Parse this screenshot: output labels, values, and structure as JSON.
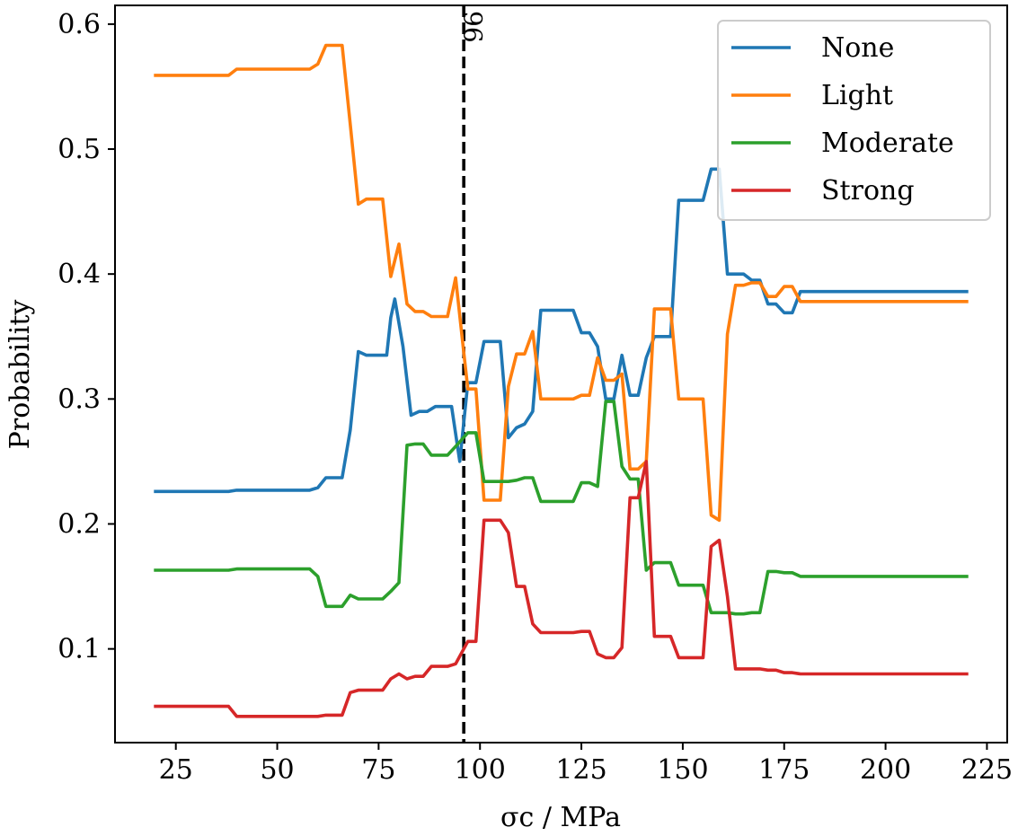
{
  "chart_data": {
    "type": "line",
    "title": "",
    "xlabel": "σc / MPa",
    "ylabel": "Probability",
    "xlim": [
      10,
      230
    ],
    "ylim": [
      0.025,
      0.615
    ],
    "xticks": [
      25,
      50,
      75,
      100,
      125,
      150,
      175,
      200,
      225
    ],
    "yticks": [
      0.1,
      0.2,
      0.3,
      0.4,
      0.5,
      0.6
    ],
    "ytick_labels": [
      "0.1",
      "0.2",
      "0.3",
      "0.4",
      "0.5",
      "0.6"
    ],
    "legend_position": "top-right",
    "vline": {
      "x": 96,
      "label": "96",
      "style": "dashed"
    },
    "series": [
      {
        "name": "None",
        "color": "#1f77b4",
        "points": [
          [
            20,
            0.226
          ],
          [
            38,
            0.226
          ],
          [
            40,
            0.227
          ],
          [
            58,
            0.227
          ],
          [
            60,
            0.229
          ],
          [
            62,
            0.237
          ],
          [
            66,
            0.237
          ],
          [
            68,
            0.275
          ],
          [
            70,
            0.338
          ],
          [
            72,
            0.335
          ],
          [
            75,
            0.335
          ],
          [
            77,
            0.335
          ],
          [
            78,
            0.365
          ],
          [
            79,
            0.38
          ],
          [
            81,
            0.342
          ],
          [
            83,
            0.287
          ],
          [
            85,
            0.29
          ],
          [
            87,
            0.29
          ],
          [
            89,
            0.294
          ],
          [
            93,
            0.294
          ],
          [
            95,
            0.25
          ],
          [
            97,
            0.313
          ],
          [
            99,
            0.313
          ],
          [
            101,
            0.346
          ],
          [
            105,
            0.346
          ],
          [
            107,
            0.269
          ],
          [
            109,
            0.277
          ],
          [
            111,
            0.28
          ],
          [
            113,
            0.29
          ],
          [
            115,
            0.371
          ],
          [
            123,
            0.371
          ],
          [
            125,
            0.353
          ],
          [
            127,
            0.353
          ],
          [
            129,
            0.342
          ],
          [
            131,
            0.3
          ],
          [
            133,
            0.3
          ],
          [
            135,
            0.335
          ],
          [
            137,
            0.303
          ],
          [
            139,
            0.303
          ],
          [
            141,
            0.333
          ],
          [
            143,
            0.35
          ],
          [
            147,
            0.35
          ],
          [
            149,
            0.459
          ],
          [
            155,
            0.459
          ],
          [
            157,
            0.484
          ],
          [
            159,
            0.484
          ],
          [
            161,
            0.4
          ],
          [
            165,
            0.4
          ],
          [
            167,
            0.395
          ],
          [
            169,
            0.395
          ],
          [
            171,
            0.376
          ],
          [
            173,
            0.376
          ],
          [
            175,
            0.369
          ],
          [
            177,
            0.369
          ],
          [
            179,
            0.386
          ],
          [
            220,
            0.386
          ]
        ]
      },
      {
        "name": "Light",
        "color": "#ff7f0e",
        "points": [
          [
            20,
            0.559
          ],
          [
            38,
            0.559
          ],
          [
            40,
            0.564
          ],
          [
            58,
            0.564
          ],
          [
            60,
            0.568
          ],
          [
            62,
            0.583
          ],
          [
            66,
            0.583
          ],
          [
            68,
            0.52
          ],
          [
            70,
            0.456
          ],
          [
            72,
            0.46
          ],
          [
            76,
            0.46
          ],
          [
            78,
            0.398
          ],
          [
            80,
            0.424
          ],
          [
            82,
            0.376
          ],
          [
            84,
            0.37
          ],
          [
            86,
            0.37
          ],
          [
            88,
            0.366
          ],
          [
            92,
            0.366
          ],
          [
            94,
            0.397
          ],
          [
            96,
            0.337
          ],
          [
            97,
            0.308
          ],
          [
            99,
            0.308
          ],
          [
            101,
            0.219
          ],
          [
            105,
            0.219
          ],
          [
            107,
            0.31
          ],
          [
            109,
            0.336
          ],
          [
            111,
            0.336
          ],
          [
            113,
            0.354
          ],
          [
            115,
            0.3
          ],
          [
            123,
            0.3
          ],
          [
            125,
            0.303
          ],
          [
            127,
            0.303
          ],
          [
            129,
            0.333
          ],
          [
            131,
            0.315
          ],
          [
            133,
            0.315
          ],
          [
            135,
            0.32
          ],
          [
            137,
            0.244
          ],
          [
            139,
            0.244
          ],
          [
            141,
            0.25
          ],
          [
            143,
            0.372
          ],
          [
            147,
            0.372
          ],
          [
            149,
            0.3
          ],
          [
            155,
            0.3
          ],
          [
            157,
            0.207
          ],
          [
            159,
            0.203
          ],
          [
            161,
            0.352
          ],
          [
            163,
            0.391
          ],
          [
            165,
            0.391
          ],
          [
            167,
            0.393
          ],
          [
            169,
            0.393
          ],
          [
            171,
            0.382
          ],
          [
            173,
            0.382
          ],
          [
            175,
            0.39
          ],
          [
            177,
            0.39
          ],
          [
            179,
            0.378
          ],
          [
            220,
            0.378
          ]
        ]
      },
      {
        "name": "Moderate",
        "color": "#2ca02c",
        "points": [
          [
            20,
            0.163
          ],
          [
            38,
            0.163
          ],
          [
            40,
            0.164
          ],
          [
            58,
            0.164
          ],
          [
            60,
            0.158
          ],
          [
            62,
            0.134
          ],
          [
            66,
            0.134
          ],
          [
            68,
            0.143
          ],
          [
            70,
            0.14
          ],
          [
            72,
            0.14
          ],
          [
            76,
            0.14
          ],
          [
            78,
            0.146
          ],
          [
            80,
            0.153
          ],
          [
            82,
            0.263
          ],
          [
            84,
            0.264
          ],
          [
            86,
            0.264
          ],
          [
            88,
            0.255
          ],
          [
            92,
            0.255
          ],
          [
            94,
            0.262
          ],
          [
            97,
            0.273
          ],
          [
            99,
            0.273
          ],
          [
            101,
            0.234
          ],
          [
            105,
            0.234
          ],
          [
            107,
            0.234
          ],
          [
            109,
            0.235
          ],
          [
            111,
            0.237
          ],
          [
            113,
            0.237
          ],
          [
            115,
            0.218
          ],
          [
            123,
            0.218
          ],
          [
            125,
            0.233
          ],
          [
            127,
            0.233
          ],
          [
            129,
            0.23
          ],
          [
            131,
            0.298
          ],
          [
            133,
            0.298
          ],
          [
            135,
            0.246
          ],
          [
            137,
            0.236
          ],
          [
            139,
            0.236
          ],
          [
            141,
            0.163
          ],
          [
            143,
            0.169
          ],
          [
            147,
            0.169
          ],
          [
            149,
            0.151
          ],
          [
            155,
            0.151
          ],
          [
            157,
            0.129
          ],
          [
            161,
            0.129
          ],
          [
            163,
            0.128
          ],
          [
            165,
            0.128
          ],
          [
            167,
            0.129
          ],
          [
            169,
            0.129
          ],
          [
            171,
            0.162
          ],
          [
            173,
            0.162
          ],
          [
            175,
            0.161
          ],
          [
            177,
            0.161
          ],
          [
            179,
            0.158
          ],
          [
            220,
            0.158
          ]
        ]
      },
      {
        "name": "Strong",
        "color": "#d62728",
        "points": [
          [
            20,
            0.054
          ],
          [
            38,
            0.054
          ],
          [
            40,
            0.046
          ],
          [
            58,
            0.046
          ],
          [
            60,
            0.046
          ],
          [
            62,
            0.047
          ],
          [
            66,
            0.047
          ],
          [
            68,
            0.065
          ],
          [
            70,
            0.067
          ],
          [
            72,
            0.067
          ],
          [
            76,
            0.067
          ],
          [
            78,
            0.076
          ],
          [
            80,
            0.08
          ],
          [
            82,
            0.076
          ],
          [
            84,
            0.078
          ],
          [
            86,
            0.078
          ],
          [
            88,
            0.086
          ],
          [
            92,
            0.086
          ],
          [
            94,
            0.088
          ],
          [
            97,
            0.106
          ],
          [
            99,
            0.106
          ],
          [
            101,
            0.203
          ],
          [
            105,
            0.203
          ],
          [
            107,
            0.193
          ],
          [
            109,
            0.15
          ],
          [
            111,
            0.15
          ],
          [
            113,
            0.12
          ],
          [
            115,
            0.113
          ],
          [
            123,
            0.113
          ],
          [
            125,
            0.114
          ],
          [
            127,
            0.114
          ],
          [
            129,
            0.096
          ],
          [
            131,
            0.093
          ],
          [
            133,
            0.093
          ],
          [
            135,
            0.101
          ],
          [
            137,
            0.221
          ],
          [
            139,
            0.221
          ],
          [
            141,
            0.25
          ],
          [
            143,
            0.11
          ],
          [
            147,
            0.11
          ],
          [
            149,
            0.093
          ],
          [
            155,
            0.093
          ],
          [
            157,
            0.182
          ],
          [
            159,
            0.187
          ],
          [
            161,
            0.142
          ],
          [
            163,
            0.084
          ],
          [
            165,
            0.084
          ],
          [
            167,
            0.084
          ],
          [
            169,
            0.084
          ],
          [
            171,
            0.083
          ],
          [
            173,
            0.083
          ],
          [
            175,
            0.081
          ],
          [
            177,
            0.081
          ],
          [
            179,
            0.08
          ],
          [
            220,
            0.08
          ]
        ]
      }
    ]
  }
}
